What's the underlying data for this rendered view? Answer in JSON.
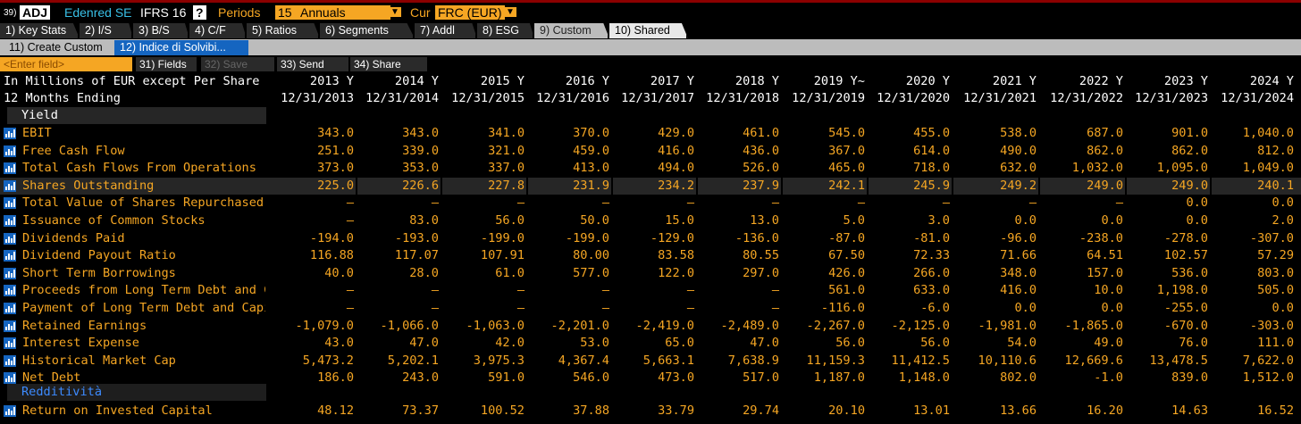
{
  "topbar": {
    "ticker_num": "39)",
    "adj": "ADJ",
    "company": "Edenred SE",
    "ifrs": "IFRS 16",
    "help": "?",
    "periods_label": "Periods",
    "periods_value": "15",
    "freq": "Annuals",
    "cur_label": "Cur",
    "cur_value": "FRC (EUR)"
  },
  "tabs": [
    {
      "label": "1) Key Stats"
    },
    {
      "label": "2) I/S"
    },
    {
      "label": "3) B/S"
    },
    {
      "label": "4) C/F"
    },
    {
      "label": "5) Ratios"
    },
    {
      "label": "6) Segments"
    },
    {
      "label": "7) Addl"
    },
    {
      "label": "8) ESG"
    },
    {
      "label": "9) Custom"
    },
    {
      "label": "10) Shared"
    }
  ],
  "subtabs": [
    {
      "label": "11) Create Custom"
    },
    {
      "label": "12) Indice di Solvibi..."
    }
  ],
  "actions": {
    "field_placeholder": "<Enter field>",
    "fields": "31) Fields",
    "save": "32) Save",
    "send": "33) Send",
    "share": "34) Share"
  },
  "header": {
    "line1": "In Millions of EUR except Per Share",
    "line2": "12 Months Ending",
    "years": [
      "2013 Y",
      "2014 Y",
      "2015 Y",
      "2016 Y",
      "2017 Y",
      "2018 Y",
      "2019 Y~",
      "2020 Y",
      "2021 Y",
      "2022 Y",
      "2023 Y",
      "2024 Y"
    ],
    "dates": [
      "12/31/2013",
      "12/31/2014",
      "12/31/2015",
      "12/31/2016",
      "12/31/2017",
      "12/31/2018",
      "12/31/2019",
      "12/31/2020",
      "12/31/2021",
      "12/31/2022",
      "12/31/2023",
      "12/31/2024"
    ]
  },
  "sections": {
    "yield": "Yield",
    "redditivita": "Redditività"
  },
  "rows": [
    {
      "label": "EBIT",
      "values": [
        "343.0",
        "343.0",
        "341.0",
        "370.0",
        "429.0",
        "461.0",
        "545.0",
        "455.0",
        "538.0",
        "687.0",
        "901.0",
        "1,040.0"
      ]
    },
    {
      "label": "Free Cash Flow",
      "values": [
        "251.0",
        "339.0",
        "321.0",
        "459.0",
        "416.0",
        "436.0",
        "367.0",
        "614.0",
        "490.0",
        "862.0",
        "862.0",
        "812.0"
      ]
    },
    {
      "label": "Total Cash Flows From Operations",
      "values": [
        "373.0",
        "353.0",
        "337.0",
        "413.0",
        "494.0",
        "526.0",
        "465.0",
        "718.0",
        "632.0",
        "1,032.0",
        "1,095.0",
        "1,049.0"
      ]
    },
    {
      "label": "Shares Outstanding",
      "values": [
        "225.0",
        "226.6",
        "227.8",
        "231.9",
        "234.2",
        "237.9",
        "242.1",
        "245.9",
        "249.2",
        "249.0",
        "249.0",
        "240.1"
      ]
    },
    {
      "label": "Total Value of Shares Repurchased",
      "values": [
        "—",
        "—",
        "—",
        "—",
        "—",
        "—",
        "—",
        "—",
        "—",
        "—",
        "0.0",
        "0.0"
      ]
    },
    {
      "label": "Issuance of Common Stocks",
      "values": [
        "—",
        "83.0",
        "56.0",
        "50.0",
        "15.0",
        "13.0",
        "5.0",
        "3.0",
        "0.0",
        "0.0",
        "0.0",
        "2.0"
      ]
    },
    {
      "label": "Dividends Paid",
      "values": [
        "-194.0",
        "-193.0",
        "-199.0",
        "-199.0",
        "-129.0",
        "-136.0",
        "-87.0",
        "-81.0",
        "-96.0",
        "-238.0",
        "-278.0",
        "-307.0"
      ]
    },
    {
      "label": "Dividend Payout Ratio",
      "values": [
        "116.88",
        "117.07",
        "107.91",
        "80.00",
        "83.58",
        "80.55",
        "67.50",
        "72.33",
        "71.66",
        "64.51",
        "102.57",
        "57.29"
      ]
    },
    {
      "label": "Short Term Borrowings",
      "values": [
        "40.0",
        "28.0",
        "61.0",
        "577.0",
        "122.0",
        "297.0",
        "426.0",
        "266.0",
        "348.0",
        "157.0",
        "536.0",
        "803.0"
      ]
    },
    {
      "label": "Proceeds from Long Term Debt and C...",
      "values": [
        "—",
        "—",
        "—",
        "—",
        "—",
        "—",
        "561.0",
        "633.0",
        "416.0",
        "10.0",
        "1,198.0",
        "505.0"
      ]
    },
    {
      "label": "Payment of Long Term Debt and Capit...",
      "values": [
        "—",
        "—",
        "—",
        "—",
        "—",
        "—",
        "-116.0",
        "-6.0",
        "0.0",
        "0.0",
        "-255.0",
        "0.0"
      ]
    },
    {
      "label": "Retained Earnings",
      "values": [
        "-1,079.0",
        "-1,066.0",
        "-1,063.0",
        "-2,201.0",
        "-2,419.0",
        "-2,489.0",
        "-2,267.0",
        "-2,125.0",
        "-1,981.0",
        "-1,865.0",
        "-670.0",
        "-303.0"
      ]
    },
    {
      "label": "Interest Expense",
      "values": [
        "43.0",
        "47.0",
        "42.0",
        "53.0",
        "65.0",
        "47.0",
        "56.0",
        "56.0",
        "54.0",
        "49.0",
        "76.0",
        "111.0"
      ]
    },
    {
      "label": "Historical Market Cap",
      "values": [
        "5,473.2",
        "5,202.1",
        "3,975.3",
        "4,367.4",
        "5,663.1",
        "7,638.9",
        "11,159.3",
        "11,412.5",
        "10,110.6",
        "12,669.6",
        "13,478.5",
        "7,622.0"
      ]
    },
    {
      "label": "Net Debt",
      "values": [
        "186.0",
        "243.0",
        "591.0",
        "546.0",
        "473.0",
        "517.0",
        "1,187.0",
        "1,148.0",
        "802.0",
        "-1.0",
        "839.0",
        "1,512.0"
      ]
    }
  ],
  "last_row": {
    "label": "Return on Invested Capital",
    "values": [
      "48.12",
      "73.37",
      "100.52",
      "37.88",
      "33.79",
      "29.74",
      "20.10",
      "13.01",
      "13.66",
      "16.20",
      "14.63",
      "16.52"
    ]
  }
}
